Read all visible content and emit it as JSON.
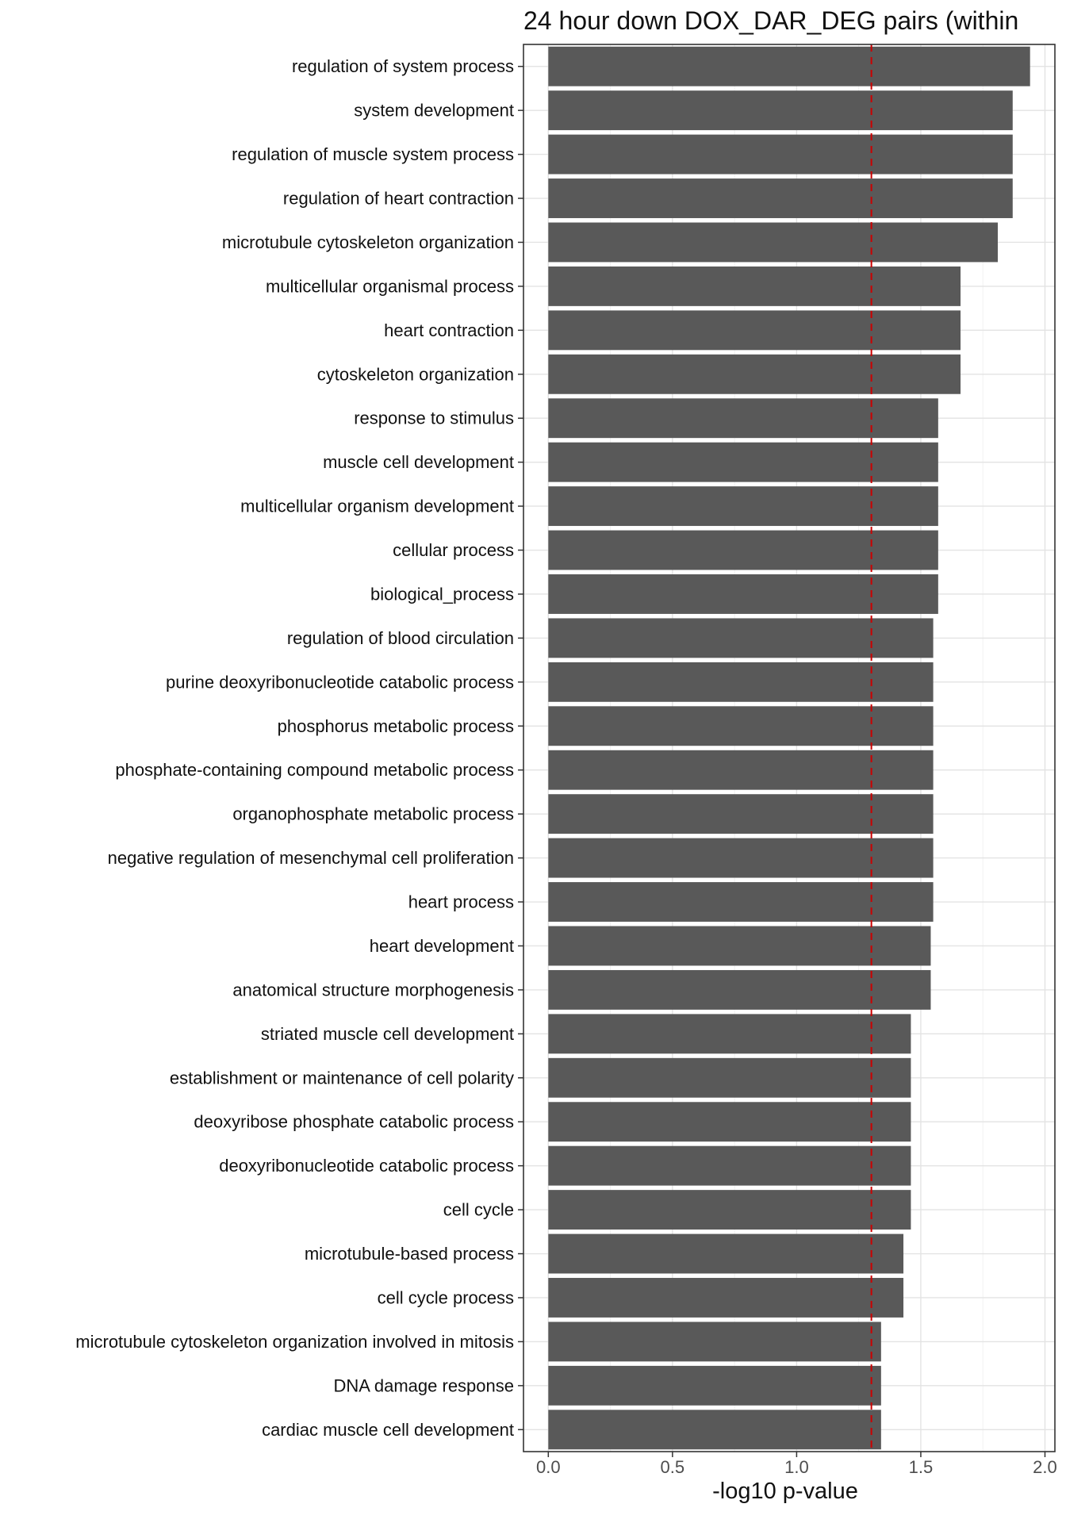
{
  "chart_data": {
    "type": "bar",
    "orientation": "horizontal",
    "title": "24 hour down DOX_DAR_DEG pairs (within",
    "xlabel": "-log10 p-value",
    "ylabel": "",
    "xlim": [
      -0.1,
      2.04
    ],
    "xticks": [
      0.0,
      0.5,
      1.0,
      1.5,
      2.0
    ],
    "xtick_labels": [
      "0.0",
      "0.5",
      "1.0",
      "1.5",
      "2.0"
    ],
    "grid": true,
    "threshold_line": {
      "value": 1.301,
      "color": "#cc0000",
      "style": "dashed"
    },
    "bar_color": "#595959",
    "categories": [
      "regulation of system process",
      "system development",
      "regulation of muscle system process",
      "regulation of heart contraction",
      "microtubule cytoskeleton organization",
      "multicellular organismal process",
      "heart contraction",
      "cytoskeleton organization",
      "response to stimulus",
      "muscle cell development",
      "multicellular organism development",
      "cellular process",
      "biological_process",
      "regulation of blood circulation",
      "purine deoxyribonucleotide catabolic process",
      "phosphorus metabolic process",
      "phosphate-containing compound metabolic process",
      "organophosphate metabolic process",
      "negative regulation of mesenchymal cell proliferation",
      "heart process",
      "heart development",
      "anatomical structure morphogenesis",
      "striated muscle cell development",
      "establishment or maintenance of cell polarity",
      "deoxyribose phosphate catabolic process",
      "deoxyribonucleotide catabolic process",
      "cell cycle",
      "microtubule-based process",
      "cell cycle process",
      "microtubule cytoskeleton organization involved in mitosis",
      "DNA damage response",
      "cardiac muscle cell development"
    ],
    "values": [
      1.94,
      1.87,
      1.87,
      1.87,
      1.81,
      1.66,
      1.66,
      1.66,
      1.57,
      1.57,
      1.57,
      1.57,
      1.57,
      1.55,
      1.55,
      1.55,
      1.55,
      1.55,
      1.55,
      1.55,
      1.54,
      1.54,
      1.46,
      1.46,
      1.46,
      1.46,
      1.46,
      1.43,
      1.43,
      1.34,
      1.34,
      1.34
    ]
  }
}
